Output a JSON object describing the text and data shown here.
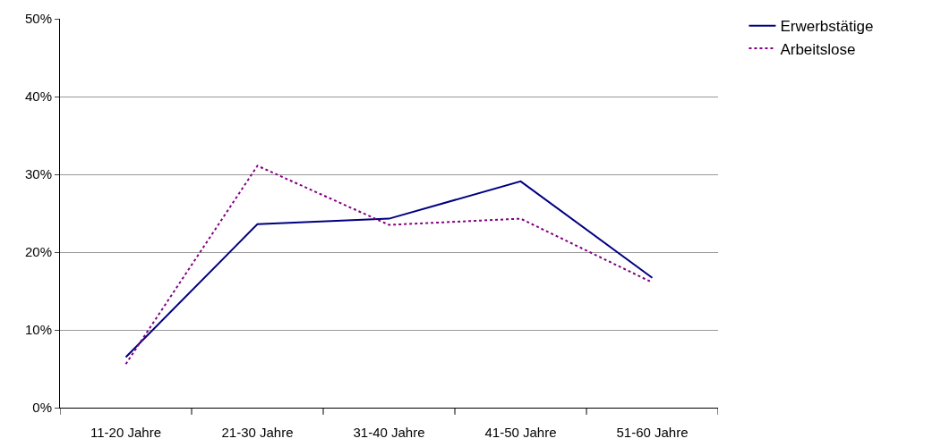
{
  "chart_data": {
    "type": "line",
    "categories": [
      "11-20 Jahre",
      "21-30 Jahre",
      "31-40 Jahre",
      "41-50 Jahre",
      "51-60 Jahre"
    ],
    "series": [
      {
        "name": "Erwerbstätige",
        "color": "#000080",
        "line_style": "solid",
        "values": [
          6.5,
          23.6,
          24.3,
          29.1,
          16.7
        ]
      },
      {
        "name": "Arbeitslose",
        "color": "#800080",
        "line_style": "dotted",
        "values": [
          5.6,
          31.1,
          23.5,
          24.3,
          16.1
        ]
      }
    ],
    "ylim": [
      0,
      50
    ],
    "yticks": [
      {
        "value": 0,
        "label": "0%"
      },
      {
        "value": 10,
        "label": "10%"
      },
      {
        "value": 20,
        "label": "20%"
      },
      {
        "value": 30,
        "label": "30%"
      },
      {
        "value": 40,
        "label": "40%"
      },
      {
        "value": 50,
        "label": "50%"
      }
    ],
    "grid": "y",
    "legend": "top right",
    "marker": "none"
  }
}
